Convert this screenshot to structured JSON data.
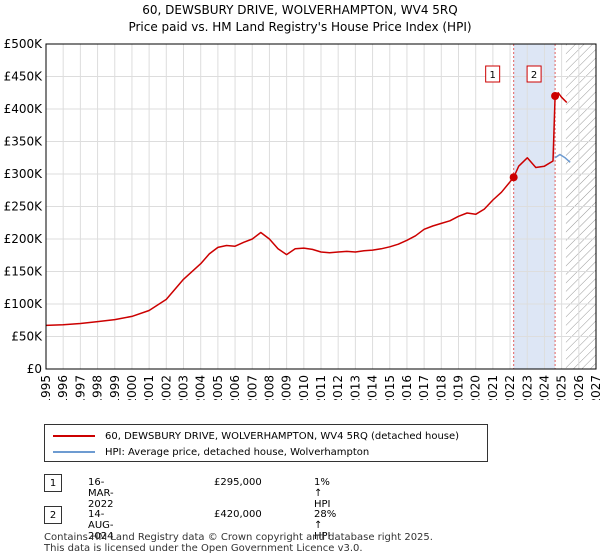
{
  "title_line1": "60, DEWSBURY DRIVE, WOLVERHAMPTON, WV4 5RQ",
  "title_line2": "Price paid vs. HM Land Registry's House Price Index (HPI)",
  "chart_data": {
    "type": "line",
    "xlim": [
      1995,
      2027
    ],
    "ylim": [
      0,
      500000
    ],
    "x_ticks": [
      1995,
      1996,
      1997,
      1998,
      1999,
      2000,
      2001,
      2002,
      2003,
      2004,
      2005,
      2006,
      2007,
      2008,
      2009,
      2010,
      2011,
      2012,
      2013,
      2014,
      2015,
      2016,
      2017,
      2018,
      2019,
      2020,
      2021,
      2022,
      2023,
      2024,
      2025,
      2026,
      2027
    ],
    "y_ticks": [
      0,
      50000,
      100000,
      150000,
      200000,
      250000,
      300000,
      350000,
      400000,
      450000,
      500000
    ],
    "y_tick_labels": [
      "£0",
      "£50K",
      "£100K",
      "£150K",
      "£200K",
      "£250K",
      "£300K",
      "£350K",
      "£400K",
      "£450K",
      "£500K"
    ],
    "grid": true,
    "shaded_period": [
      2022.21,
      2024.62
    ],
    "hatched_from": 2025.25,
    "series": [
      {
        "name": "60, DEWSBURY DRIVE, WOLVERHAMPTON, WV4 5RQ (detached house)",
        "color": "#cc0000",
        "x": [
          1995,
          1996,
          1997,
          1998,
          1999,
          2000,
          2001,
          2002,
          2003,
          2004,
          2004.5,
          2005,
          2005.5,
          2006,
          2006.5,
          2007,
          2007.5,
          2008,
          2008.5,
          2009,
          2009.5,
          2010,
          2010.5,
          2011,
          2011.5,
          2012,
          2012.5,
          2013,
          2013.5,
          2014,
          2014.5,
          2015,
          2015.5,
          2016,
          2016.5,
          2017,
          2017.5,
          2018,
          2018.5,
          2019,
          2019.5,
          2020,
          2020.5,
          2021,
          2021.5,
          2022.21,
          2022.5,
          2023,
          2023.5,
          2024,
          2024.5,
          2024.62,
          2024.8,
          2025,
          2025.3
        ],
        "y": [
          67000,
          68000,
          70000,
          73000,
          76000,
          81000,
          90000,
          107000,
          138000,
          162000,
          177000,
          187000,
          190000,
          189000,
          195000,
          200000,
          210000,
          200000,
          185000,
          176000,
          185000,
          186000,
          184000,
          180000,
          179000,
          180000,
          181000,
          180000,
          182000,
          183000,
          185000,
          188000,
          192000,
          198000,
          205000,
          215000,
          220000,
          224000,
          228000,
          235000,
          240000,
          238000,
          246000,
          260000,
          272000,
          295000,
          312000,
          325000,
          310000,
          312000,
          320000,
          420000,
          425000,
          418000,
          410000
        ]
      },
      {
        "name": "HPI: Average price, detached house, Wolverhampton",
        "color": "#6d9bd1",
        "x": [
          2024.62,
          2024.9,
          2025.2,
          2025.5
        ],
        "y": [
          325000,
          330000,
          325000,
          318000
        ]
      }
    ],
    "markers": [
      {
        "label": "1",
        "x": 2022.21,
        "y": 295000
      },
      {
        "label": "2",
        "x": 2024.62,
        "y": 420000
      }
    ]
  },
  "legend": {
    "items": [
      {
        "label": "60, DEWSBURY DRIVE, WOLVERHAMPTON, WV4 5RQ (detached house)",
        "color": "#cc0000"
      },
      {
        "label": "HPI: Average price, detached house, Wolverhampton",
        "color": "#6d9bd1"
      }
    ]
  },
  "annotations": [
    {
      "num": "1",
      "date": "16-MAR-2022",
      "price": "£295,000",
      "hpi": "1% ↑ HPI"
    },
    {
      "num": "2",
      "date": "14-AUG-2024",
      "price": "£420,000",
      "hpi": "28% ↑ HPI"
    }
  ],
  "footer": {
    "line1": "Contains HM Land Registry data © Crown copyright and database right 2025.",
    "line2": "This data is licensed under the Open Government Licence v3.0."
  }
}
